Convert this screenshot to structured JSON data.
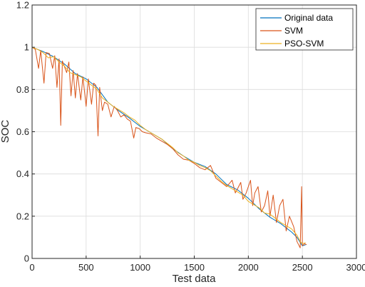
{
  "chart_data": {
    "type": "line",
    "xlabel": "Test data",
    "ylabel": "SOC",
    "xlim": [
      0,
      3000
    ],
    "ylim": [
      0,
      1.2
    ],
    "xticks": [
      "0",
      "500",
      "1000",
      "1500",
      "2000",
      "2500",
      "3000"
    ],
    "yticks": [
      "0",
      "0.2",
      "0.4",
      "0.6",
      "0.8",
      "1",
      "1.2"
    ],
    "grid": true,
    "legend_position": "top-right",
    "series": [
      {
        "name": "Original data",
        "color": "#0072BD",
        "points": [
          [
            0,
            1.0
          ],
          [
            100,
            0.98
          ],
          [
            200,
            0.955
          ],
          [
            300,
            0.92
          ],
          [
            400,
            0.875
          ],
          [
            500,
            0.85
          ],
          [
            600,
            0.81
          ],
          [
            700,
            0.74
          ],
          [
            800,
            0.7
          ],
          [
            900,
            0.665
          ],
          [
            1000,
            0.625
          ],
          [
            1100,
            0.595
          ],
          [
            1200,
            0.565
          ],
          [
            1300,
            0.52
          ],
          [
            1400,
            0.485
          ],
          [
            1500,
            0.455
          ],
          [
            1600,
            0.435
          ],
          [
            1700,
            0.4
          ],
          [
            1800,
            0.35
          ],
          [
            1900,
            0.325
          ],
          [
            2000,
            0.285
          ],
          [
            2100,
            0.235
          ],
          [
            2200,
            0.195
          ],
          [
            2300,
            0.165
          ],
          [
            2400,
            0.125
          ],
          [
            2450,
            0.1
          ],
          [
            2500,
            0.06
          ],
          [
            2530,
            0.065
          ]
        ]
      },
      {
        "name": "SVM",
        "color": "#D95319",
        "points": [
          [
            0,
            1.0
          ],
          [
            30,
            0.99
          ],
          [
            60,
            0.9
          ],
          [
            80,
            0.985
          ],
          [
            110,
            0.83
          ],
          [
            130,
            0.975
          ],
          [
            160,
            0.97
          ],
          [
            190,
            0.9
          ],
          [
            210,
            0.96
          ],
          [
            230,
            0.81
          ],
          [
            250,
            0.945
          ],
          [
            265,
            0.63
          ],
          [
            280,
            0.935
          ],
          [
            320,
            0.88
          ],
          [
            340,
            0.93
          ],
          [
            360,
            0.77
          ],
          [
            380,
            0.89
          ],
          [
            400,
            0.76
          ],
          [
            420,
            0.875
          ],
          [
            450,
            0.75
          ],
          [
            470,
            0.86
          ],
          [
            500,
            0.72
          ],
          [
            520,
            0.85
          ],
          [
            550,
            0.73
          ],
          [
            570,
            0.83
          ],
          [
            590,
            0.82
          ],
          [
            610,
            0.58
          ],
          [
            625,
            0.81
          ],
          [
            650,
            0.7
          ],
          [
            670,
            0.74
          ],
          [
            700,
            0.73
          ],
          [
            730,
            0.67
          ],
          [
            760,
            0.72
          ],
          [
            790,
            0.7
          ],
          [
            820,
            0.67
          ],
          [
            850,
            0.68
          ],
          [
            880,
            0.66
          ],
          [
            910,
            0.65
          ],
          [
            940,
            0.57
          ],
          [
            960,
            0.62
          ],
          [
            990,
            0.615
          ],
          [
            1020,
            0.6
          ],
          [
            1050,
            0.595
          ],
          [
            1100,
            0.59
          ],
          [
            1150,
            0.57
          ],
          [
            1200,
            0.555
          ],
          [
            1250,
            0.54
          ],
          [
            1300,
            0.52
          ],
          [
            1350,
            0.49
          ],
          [
            1400,
            0.47
          ],
          [
            1450,
            0.465
          ],
          [
            1500,
            0.45
          ],
          [
            1550,
            0.43
          ],
          [
            1600,
            0.42
          ],
          [
            1650,
            0.44
          ],
          [
            1700,
            0.38
          ],
          [
            1750,
            0.36
          ],
          [
            1800,
            0.34
          ],
          [
            1850,
            0.37
          ],
          [
            1880,
            0.31
          ],
          [
            1900,
            0.33
          ],
          [
            1930,
            0.36
          ],
          [
            1950,
            0.28
          ],
          [
            1980,
            0.31
          ],
          [
            2020,
            0.37
          ],
          [
            2040,
            0.25
          ],
          [
            2060,
            0.31
          ],
          [
            2090,
            0.34
          ],
          [
            2120,
            0.22
          ],
          [
            2150,
            0.25
          ],
          [
            2180,
            0.32
          ],
          [
            2200,
            0.2
          ],
          [
            2230,
            0.3
          ],
          [
            2260,
            0.17
          ],
          [
            2290,
            0.25
          ],
          [
            2320,
            0.28
          ],
          [
            2350,
            0.13
          ],
          [
            2380,
            0.2
          ],
          [
            2420,
            0.15
          ],
          [
            2450,
            0.08
          ],
          [
            2480,
            0.05
          ],
          [
            2493,
            0.34
          ],
          [
            2500,
            0.06
          ],
          [
            2520,
            0.07
          ],
          [
            2540,
            0.065
          ]
        ]
      },
      {
        "name": "PSO-SVM",
        "color": "#EDB120",
        "points": [
          [
            0,
            1.0
          ],
          [
            50,
            0.99
          ],
          [
            100,
            0.975
          ],
          [
            150,
            0.95
          ],
          [
            200,
            0.955
          ],
          [
            250,
            0.93
          ],
          [
            300,
            0.91
          ],
          [
            350,
            0.88
          ],
          [
            400,
            0.87
          ],
          [
            450,
            0.86
          ],
          [
            500,
            0.84
          ],
          [
            550,
            0.82
          ],
          [
            600,
            0.8
          ],
          [
            650,
            0.76
          ],
          [
            700,
            0.74
          ],
          [
            750,
            0.72
          ],
          [
            800,
            0.705
          ],
          [
            850,
            0.69
          ],
          [
            900,
            0.67
          ],
          [
            950,
            0.655
          ],
          [
            1000,
            0.63
          ],
          [
            1050,
            0.61
          ],
          [
            1100,
            0.595
          ],
          [
            1150,
            0.58
          ],
          [
            1200,
            0.565
          ],
          [
            1250,
            0.545
          ],
          [
            1300,
            0.525
          ],
          [
            1350,
            0.5
          ],
          [
            1400,
            0.485
          ],
          [
            1450,
            0.465
          ],
          [
            1500,
            0.455
          ],
          [
            1550,
            0.44
          ],
          [
            1600,
            0.43
          ],
          [
            1650,
            0.415
          ],
          [
            1700,
            0.39
          ],
          [
            1750,
            0.365
          ],
          [
            1800,
            0.345
          ],
          [
            1850,
            0.33
          ],
          [
            1900,
            0.315
          ],
          [
            1950,
            0.3
          ],
          [
            2000,
            0.27
          ],
          [
            2050,
            0.255
          ],
          [
            2100,
            0.24
          ],
          [
            2150,
            0.215
          ],
          [
            2200,
            0.21
          ],
          [
            2250,
            0.19
          ],
          [
            2300,
            0.17
          ],
          [
            2350,
            0.155
          ],
          [
            2400,
            0.14
          ],
          [
            2450,
            0.11
          ],
          [
            2480,
            0.08
          ],
          [
            2500,
            0.07
          ],
          [
            2530,
            0.075
          ]
        ]
      }
    ]
  }
}
